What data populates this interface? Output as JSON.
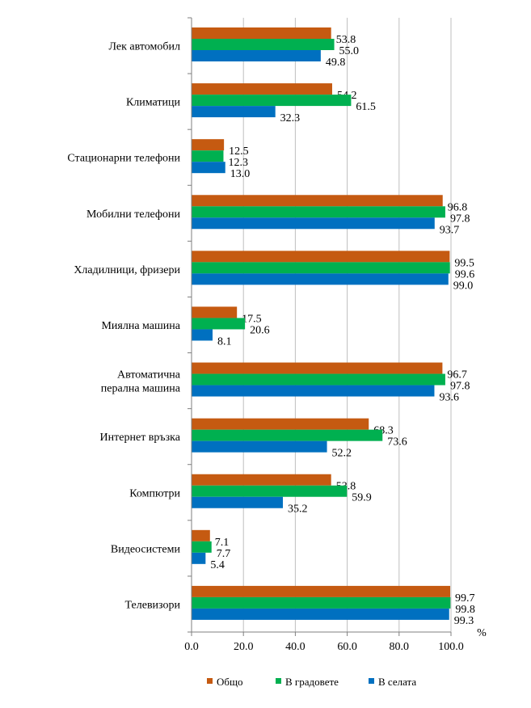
{
  "chart_data": {
    "type": "bar",
    "orientation": "horizontal",
    "categories": [
      [
        "Лек автомобил"
      ],
      [
        "Климатици"
      ],
      [
        "Стационарни телефони"
      ],
      [
        "Мобилни телефони"
      ],
      [
        "Хладилници, фризери"
      ],
      [
        "Миялна машина"
      ],
      [
        "Автоматична",
        "перална машина"
      ],
      [
        "Интернет връзка"
      ],
      [
        "Компютри"
      ],
      [
        "Видеосистеми"
      ],
      [
        "Телевизори"
      ]
    ],
    "series": [
      {
        "name": "Общо",
        "color": "#C55A11",
        "values": [
          53.8,
          54.2,
          12.5,
          96.8,
          99.5,
          17.5,
          96.7,
          68.3,
          53.8,
          7.1,
          99.7
        ]
      },
      {
        "name": "В градовете",
        "color": "#00B050",
        "values": [
          55.0,
          61.5,
          12.3,
          97.8,
          99.6,
          20.6,
          97.8,
          73.6,
          59.9,
          7.7,
          99.8
        ]
      },
      {
        "name": "В селата",
        "color": "#0070C0",
        "values": [
          49.8,
          32.3,
          13.0,
          93.7,
          99.0,
          8.1,
          93.6,
          52.2,
          35.2,
          5.4,
          99.3
        ]
      }
    ],
    "value_labels": [
      [
        "53.8",
        "55.0",
        "49.8"
      ],
      [
        "54.2",
        "61.5",
        "32.3"
      ],
      [
        "12.5",
        "12.3",
        "13.0"
      ],
      [
        "96.8",
        "97.8",
        "93.7"
      ],
      [
        "99.5",
        "99.6",
        "99.0"
      ],
      [
        "17.5",
        "20.6",
        "8.1"
      ],
      [
        "96.7",
        "97.8",
        "93.6"
      ],
      [
        "68.3",
        "73.6",
        "52.2"
      ],
      [
        "53.8",
        "59.9",
        "35.2"
      ],
      [
        "7.1",
        "7.7",
        "5.4"
      ],
      [
        "99.7",
        "99.8",
        "99.3"
      ]
    ],
    "xlim": [
      0,
      100
    ],
    "xticks": [
      0,
      20,
      40,
      60,
      80,
      100
    ],
    "xtick_labels": [
      "0.0",
      "20.0",
      "40.0",
      "60.0",
      "80.0",
      "100.0"
    ],
    "xlabel": "%",
    "ylabel": "",
    "title": "",
    "grid": "vertical",
    "legend_position": "bottom"
  }
}
